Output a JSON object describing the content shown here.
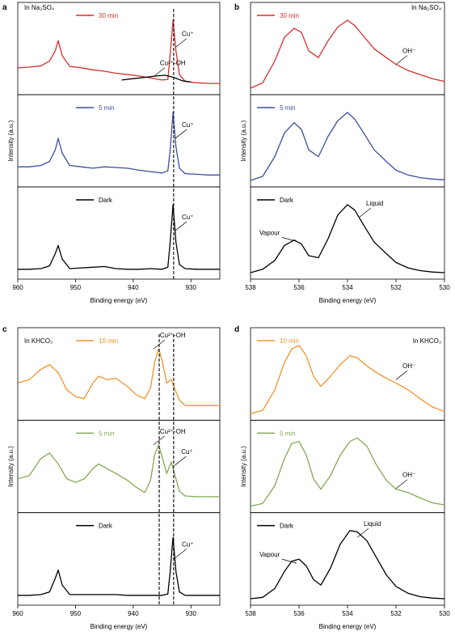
{
  "colors": {
    "red": "#d62f2f",
    "blue": "#3d4f9a",
    "black": "#000000",
    "orange": "#f0942e",
    "green": "#86a955"
  },
  "chart_data": [
    {
      "panel": "a",
      "type": "line",
      "condition": "In Na₂SO₄",
      "xlabel": "Binding energy (eV)",
      "ylabel": "Intensity (a.u.)",
      "xlim": [
        960,
        925
      ],
      "xticks": [
        960,
        950,
        940,
        930
      ],
      "vlines": [
        933
      ],
      "subplots": [
        {
          "series": [
            {
              "name": "30 min",
              "color": "red",
              "x": [
                960,
                958,
                956,
                954.5,
                953.5,
                953,
                952.3,
                951,
                949,
                947,
                945,
                943,
                941,
                939,
                937,
                935,
                934,
                933.6,
                933.1,
                932.6,
                932,
                931,
                929,
                927,
                925
              ],
              "y": [
                0.3,
                0.31,
                0.33,
                0.4,
                0.55,
                0.7,
                0.48,
                0.32,
                0.3,
                0.27,
                0.25,
                0.22,
                0.2,
                0.18,
                0.15,
                0.12,
                0.13,
                0.5,
                1.0,
                0.55,
                0.2,
                0.1,
                0.08,
                0.07,
                0.07
              ]
            },
            {
              "name": "",
              "color": "black",
              "x": [
                942,
                940,
                938,
                936,
                934.5,
                933,
                931.5,
                930
              ],
              "y": [
                0.12,
                0.14,
                0.16,
                0.18,
                0.19,
                0.16,
                0.11,
                0.09
              ]
            }
          ],
          "annotations": [
            {
              "text": "Cu²⁺-OH",
              "x": 936.5,
              "y": 0.17
            },
            {
              "text": "Cu⁺",
              "x": 932.7,
              "y": 0.6
            }
          ]
        },
        {
          "series": [
            {
              "name": "5 min",
              "color": "blue",
              "x": [
                960,
                958,
                956,
                954.5,
                953.5,
                953,
                952.3,
                951,
                949,
                947,
                945,
                943,
                941,
                939,
                937,
                935,
                934,
                933.6,
                933.1,
                932.6,
                932,
                931,
                929,
                927,
                925
              ],
              "y": [
                0.2,
                0.2,
                0.22,
                0.28,
                0.45,
                0.62,
                0.4,
                0.22,
                0.2,
                0.18,
                0.2,
                0.19,
                0.18,
                0.15,
                0.13,
                0.11,
                0.14,
                0.45,
                1.0,
                0.5,
                0.18,
                0.1,
                0.09,
                0.08,
                0.08
              ]
            }
          ],
          "annotations": [
            {
              "text": "Cu⁺",
              "x": 932.7,
              "y": 0.62
            }
          ]
        },
        {
          "series": [
            {
              "name": "Dark",
              "color": "black",
              "x": [
                960,
                958,
                956,
                954.5,
                953.5,
                953,
                952.3,
                951,
                949,
                947,
                945,
                943,
                941,
                939,
                937,
                935,
                934,
                933.6,
                933.1,
                932.6,
                932,
                931,
                929,
                927,
                925
              ],
              "y": [
                0.05,
                0.05,
                0.06,
                0.1,
                0.28,
                0.4,
                0.2,
                0.06,
                0.07,
                0.08,
                0.09,
                0.06,
                0.05,
                0.05,
                0.06,
                0.05,
                0.08,
                0.45,
                1.0,
                0.45,
                0.12,
                0.06,
                0.05,
                0.05,
                0.05
              ]
            }
          ],
          "annotations": [
            {
              "text": "Cu⁺",
              "x": 932.7,
              "y": 0.62
            }
          ]
        }
      ]
    },
    {
      "panel": "b",
      "type": "line",
      "condition": "In Na₂SO₄",
      "xlabel": "Binding energy (eV)",
      "ylabel": "Intensity (a.u.)",
      "xlim": [
        538,
        530
      ],
      "xticks": [
        538,
        536,
        534,
        532,
        530
      ],
      "subplots": [
        {
          "series": [
            {
              "name": "30 min",
              "color": "red",
              "x": [
                538,
                537.5,
                537,
                536.6,
                536.2,
                535.9,
                535.6,
                535.2,
                534.8,
                534.4,
                534.0,
                533.7,
                533.3,
                532.9,
                532.4,
                532.0,
                531.5,
                531,
                530.5,
                530
              ],
              "y": [
                0.0,
                0.08,
                0.4,
                0.75,
                0.88,
                0.82,
                0.55,
                0.45,
                0.7,
                0.9,
                1.0,
                0.92,
                0.75,
                0.58,
                0.45,
                0.35,
                0.26,
                0.2,
                0.14,
                0.1
              ]
            }
          ],
          "annotations": [
            {
              "text": "OH⁻",
              "x": 532.0,
              "y": 0.35
            }
          ]
        },
        {
          "series": [
            {
              "name": "5 min",
              "color": "blue",
              "x": [
                538,
                537.5,
                537,
                536.6,
                536.2,
                535.9,
                535.6,
                535.2,
                534.8,
                534.4,
                534.0,
                533.7,
                533.3,
                532.9,
                532.4,
                532.0,
                531.5,
                531,
                530.5,
                530
              ],
              "y": [
                0.0,
                0.06,
                0.35,
                0.7,
                0.85,
                0.75,
                0.45,
                0.35,
                0.65,
                0.88,
                1.0,
                0.9,
                0.68,
                0.45,
                0.28,
                0.15,
                0.08,
                0.04,
                0.02,
                0.01
              ]
            }
          ]
        },
        {
          "series": [
            {
              "name": "Dark",
              "color": "black",
              "x": [
                538,
                537.5,
                537,
                536.6,
                536.2,
                535.9,
                535.6,
                535.2,
                534.8,
                534.4,
                534.0,
                533.7,
                533.3,
                532.9,
                532.4,
                532.0,
                531.5,
                531,
                530.5,
                530
              ],
              "y": [
                0.0,
                0.05,
                0.18,
                0.4,
                0.48,
                0.42,
                0.25,
                0.22,
                0.5,
                0.85,
                1.0,
                0.92,
                0.68,
                0.45,
                0.28,
                0.15,
                0.07,
                0.03,
                0.01,
                0.0
              ]
            }
          ],
          "annotations": [
            {
              "text": "Vapour",
              "x": 536.1,
              "y": 0.46
            },
            {
              "text": "Liquid",
              "x": 533.5,
              "y": 0.82
            }
          ]
        }
      ]
    },
    {
      "panel": "c",
      "type": "line",
      "condition": "In KHCO₃",
      "xlabel": "Binding energy (eV)",
      "ylabel": "Intensity (a.u.)",
      "xlim": [
        960,
        925
      ],
      "xticks": [
        960,
        950,
        940,
        930
      ],
      "vlines": [
        935.5,
        933
      ],
      "subplots": [
        {
          "series": [
            {
              "name": "10 min",
              "color": "orange",
              "x": [
                960,
                958,
                956,
                954.5,
                953,
                951.5,
                950,
                948.5,
                947,
                946,
                944.5,
                943,
                941,
                939.5,
                938,
                937,
                936.3,
                935.6,
                935,
                934.2,
                933.4,
                932.6,
                932,
                931,
                929,
                927,
                925
              ],
              "y": [
                0.45,
                0.5,
                0.65,
                0.72,
                0.6,
                0.35,
                0.25,
                0.22,
                0.45,
                0.55,
                0.5,
                0.52,
                0.4,
                0.28,
                0.22,
                0.38,
                0.75,
                0.95,
                0.78,
                0.45,
                0.5,
                0.32,
                0.2,
                0.12,
                0.12,
                0.12,
                0.12
              ]
            }
          ],
          "annotations": [
            {
              "text": "Cu²⁺-OH",
              "x": 936.5,
              "y": 0.95
            }
          ]
        },
        {
          "series": [
            {
              "name": "5 min",
              "color": "green",
              "x": [
                960,
                958,
                956,
                954.5,
                953,
                951.5,
                950,
                948.5,
                947,
                946,
                944.5,
                943,
                941,
                939.5,
                938,
                937,
                936.3,
                935.6,
                935,
                934.2,
                933.4,
                932.6,
                932,
                931,
                929,
                927,
                925
              ],
              "y": [
                0.4,
                0.45,
                0.7,
                0.78,
                0.62,
                0.4,
                0.35,
                0.4,
                0.55,
                0.62,
                0.55,
                0.48,
                0.38,
                0.28,
                0.2,
                0.38,
                0.75,
                0.9,
                0.72,
                0.48,
                0.65,
                0.4,
                0.22,
                0.15,
                0.14,
                0.14,
                0.14
              ]
            }
          ],
          "annotations": [
            {
              "text": "Cu²⁺-OH",
              "x": 936.5,
              "y": 0.9
            },
            {
              "text": "Cu⁺",
              "x": 932.8,
              "y": 0.6
            }
          ]
        },
        {
          "series": [
            {
              "name": "Dark",
              "color": "black",
              "x": [
                960,
                958,
                956,
                954.5,
                953.5,
                953,
                952.3,
                951,
                949,
                947,
                945,
                943,
                941,
                939,
                937,
                935,
                934,
                933.6,
                933.1,
                932.6,
                932,
                931,
                929,
                927,
                925
              ],
              "y": [
                0.05,
                0.05,
                0.06,
                0.1,
                0.3,
                0.42,
                0.2,
                0.06,
                0.06,
                0.06,
                0.06,
                0.06,
                0.05,
                0.05,
                0.05,
                0.05,
                0.07,
                0.4,
                0.9,
                0.4,
                0.1,
                0.05,
                0.05,
                0.05,
                0.05
              ]
            }
          ],
          "annotations": [
            {
              "text": "Cu⁺",
              "x": 932.7,
              "y": 0.6
            }
          ]
        }
      ]
    },
    {
      "panel": "d",
      "type": "line",
      "condition": "In KHCO₃",
      "xlabel": "Binding energy (eV)",
      "ylabel": "Intensity (a.u.)",
      "xlim": [
        538,
        530
      ],
      "xticks": [
        538,
        536,
        534,
        532,
        530
      ],
      "subplots": [
        {
          "series": [
            {
              "name": "10 min",
              "color": "orange",
              "x": [
                538,
                537.5,
                537,
                536.6,
                536.3,
                536.0,
                535.7,
                535.4,
                535.1,
                534.7,
                534.3,
                533.9,
                533.6,
                533.2,
                532.8,
                532.4,
                532.0,
                531.5,
                531,
                530.5,
                530
              ],
              "y": [
                0.0,
                0.05,
                0.35,
                0.75,
                0.95,
                1.0,
                0.85,
                0.55,
                0.4,
                0.55,
                0.72,
                0.85,
                0.82,
                0.7,
                0.6,
                0.52,
                0.45,
                0.35,
                0.22,
                0.1,
                0.03
              ]
            }
          ],
          "annotations": [
            {
              "text": "OH⁻",
              "x": 532.0,
              "y": 0.5
            }
          ]
        },
        {
          "series": [
            {
              "name": "5 min",
              "color": "green",
              "x": [
                538,
                537.5,
                537,
                536.6,
                536.3,
                536.0,
                535.7,
                535.4,
                535.1,
                534.7,
                534.3,
                533.9,
                533.6,
                533.2,
                532.8,
                532.4,
                532.0,
                531.5,
                531,
                530.5,
                530
              ],
              "y": [
                0.0,
                0.04,
                0.3,
                0.7,
                0.92,
                0.95,
                0.75,
                0.4,
                0.25,
                0.45,
                0.75,
                0.95,
                1.0,
                0.88,
                0.6,
                0.38,
                0.25,
                0.2,
                0.12,
                0.05,
                0.02
              ]
            }
          ],
          "annotations": [
            {
              "text": "OH⁻",
              "x": 532.0,
              "y": 0.26
            }
          ]
        },
        {
          "series": [
            {
              "name": "Dark",
              "color": "black",
              "x": [
                538,
                537.5,
                537,
                536.6,
                536.3,
                536.0,
                535.7,
                535.4,
                535.1,
                534.7,
                534.3,
                533.9,
                533.6,
                533.2,
                532.8,
                532.4,
                532.0,
                531.5,
                531,
                530.5,
                530
              ],
              "y": [
                0.0,
                0.02,
                0.15,
                0.4,
                0.55,
                0.58,
                0.48,
                0.28,
                0.2,
                0.45,
                0.8,
                1.0,
                0.98,
                0.85,
                0.6,
                0.35,
                0.18,
                0.08,
                0.03,
                0.01,
                0.0
              ]
            }
          ],
          "annotations": [
            {
              "text": "Vapour",
              "x": 536.1,
              "y": 0.52
            },
            {
              "text": "Liquid",
              "x": 533.6,
              "y": 0.9
            }
          ]
        }
      ]
    }
  ]
}
